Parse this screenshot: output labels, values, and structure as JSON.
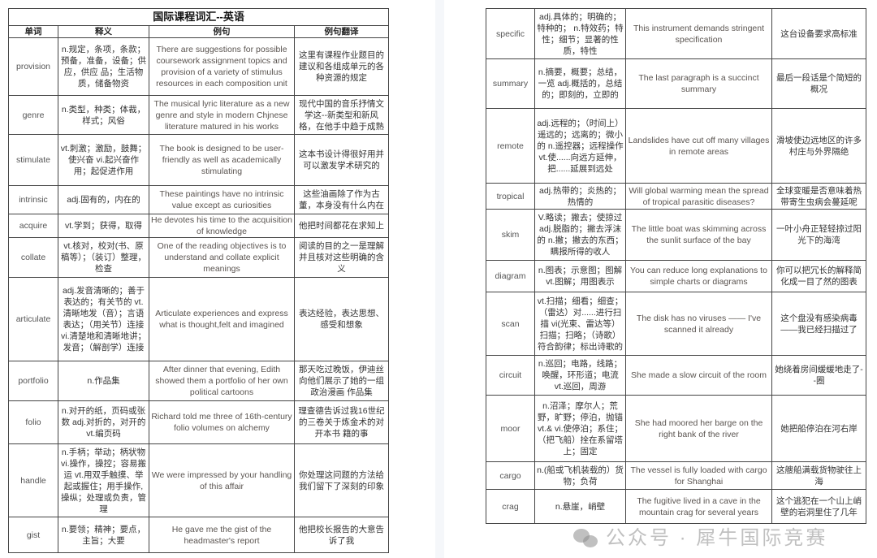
{
  "left_table": {
    "title": "国际课程词汇--英语",
    "headers": [
      "单词",
      "释义",
      "例句",
      "例句翻译"
    ],
    "rows": [
      {
        "word": "provision",
        "definition": "n.规定，条项，条款；预备，准备，设备；供应，供应 品；生活物质，储备物资",
        "example": "There are suggestions for possible coursework assignment topics and provision of a variety of stimulus resources in each composition unit",
        "translation": "这里有课程作业题目的建议和各组成单元的各种资源的规定"
      },
      {
        "word": "genre",
        "definition": "n.类型，种类；体裁，样式；风俗",
        "example": "The musical lyric literature as a new genre and style in modern Chjnese literature matured in his works",
        "translation": "现代中国的音乐抒情文学这--新类型和新风格，在他手中趋于成熟"
      },
      {
        "word": "stimulate",
        "definition": "vt.刺激；激励，鼓舞；使兴奋 vi.起兴奋作用；起促进作用",
        "example": "The book is designed to be user-friendly as well as academically stimulating",
        "translation": "这本书设计得很好用并可以激发学术研究的"
      },
      {
        "word": "intrinsic",
        "definition": "adj.固有的，内在的",
        "example": "These paintings have no intrinsic value except as curiosities",
        "translation": "这些油画除了作为古董，本身没有什么内在"
      },
      {
        "word": "acquire",
        "definition": "vt.学到；获得，取得",
        "example": "He devotes his time to the acquisition of knowledge",
        "translation": "他把时间都花在求知上"
      },
      {
        "word": "collate",
        "definition": "vt.核对，校对(书、原稿等）；（装订）整理，检查",
        "example": "One of the reading objectives is to understand and collate explicit meanings",
        "translation": "阅读的目的之一是理解并且核对这些明确的含义"
      },
      {
        "word": "articulate",
        "definition": "adj.发音清晰的；善于表达的；有关节的 vt.清晰地发（音）；言语表达；（用关节）连接 vi.清楚地和清晰地讲；发音；（解剖学）连接",
        "example": "Articulate experiences and express what is thought,felt and imagined",
        "translation": "表达经验，表达思想、感受和想象"
      },
      {
        "word": "portfolio",
        "definition": "n.作品集",
        "example": "After dinner that evening, Edith showed them a portfolio of her own political cartoons",
        "translation": "那天吃过晚饭，伊迪丝向他们展示了她的一组政治漫画 作品集"
      },
      {
        "word": "folio",
        "definition": "n.对开的纸，页码或张数 adj.对折的，对开的 vt.编页码",
        "example": "Richard told me three of 16th-century folio volumes on alchemy",
        "translation": "理查德告诉过我16世纪的三卷关于炼金术的对开本书 籍的事"
      },
      {
        "word": "handle",
        "definition": "n.手柄；举动；柄状物 vi.操作，操控；容易搬运 vt.用双手触摸、举起或握住；用手操作,操纵；处理或负责，管理",
        "example": "We were impressed by your handling of this affair",
        "translation": "你处理这问题的方法给我们留下了深刻的印象"
      },
      {
        "word": "gist",
        "definition": "n.要领；精神；要点，主旨；大要",
        "example": "He gave me the gist of the headmaster's report",
        "translation": "他把校长报告的大意告诉了我"
      }
    ]
  },
  "right_table": {
    "rows": [
      {
        "word": "specific",
        "definition": "adj.具体的；明确的；特种的； n.特效药；特性；细节；显著的性质，特性",
        "example": "This instrument demands stringent specification",
        "translation": "这台设备要求高标准"
      },
      {
        "word": "summary",
        "definition": "n.摘要，概要；总结，一览 adj.概括的，总结的；即刻的，立即的",
        "example": "The last paragraph is a succinct summary",
        "translation": "最后一段话是个简短的概况"
      },
      {
        "word": "remote",
        "definition": "adj.远程的；（时间上）遥远的；远离的；微小的 n.遥控器；远程操作 vt.使......向远方延伸，把......延展到远处",
        "example": "Landslides have cut off many villages in remote areas",
        "translation": "滑坡使边远地区的许多村庄与外界隔绝"
      },
      {
        "word": "tropical",
        "definition": "adj.热带的；炎热的；热情的",
        "example": "Will global warming mean the spread of tropical parasitic diseases?",
        "translation": "全球变暖是否意味着热带寄生虫病会蔓延呢"
      },
      {
        "word": "skim",
        "definition": "V.略读；撇去；使掠过 adj.脱脂的；撇去浮沫的 n.撇；撇去的东西；瞒报所得的收人",
        "example": "The little boat was skimming across the sunlit surface of the bay",
        "translation": "一叶小舟正轻轻掠过阳光下的海湾"
      },
      {
        "word": "diagram",
        "definition": "n.图表；示意图；图解 vt.图解；用图表示",
        "example": "You can reduce long explanations to simple charts or diagrams",
        "translation": "你可以把冗长的解释简化成一目了然的图表"
      },
      {
        "word": "scan",
        "definition": "vt.扫描；细看；细查；（雷达）对......进行扫描 vi(光束、雷达等）扫描；扫略；（诗歌）符合韵律；标出诗歌的",
        "example": "The disk has no viruses —— I've scanned it already",
        "translation": "这个盘没有感染病毒——我已经扫描过了"
      },
      {
        "word": "circuit",
        "definition": "n.巡回；电路，线路；唤醒，环形道；电流 vt.巡回，周游",
        "example": "She made a slow circuit of the room",
        "translation": "她绕着房间缓缓地走了--圈"
      },
      {
        "word": "moor",
        "definition": "n.沼泽；摩尔人；荒野，旷野；停泊，抛锚 vt.& vi.使停泊；系住；（把飞船）拴在系留塔上；固定",
        "example": "She had moored her barge on the right bank of the river",
        "translation": "她把船停泊在河右岸"
      },
      {
        "word": "cargo",
        "definition": "n.(船或飞机装载的）货物；负荷",
        "example": "The vessel is fully loaded with cargo for Shanghai",
        "translation": "这艘船满载货物驶往上海"
      },
      {
        "word": "crag",
        "definition": "n.悬崖，峭壁",
        "example": "The fugitive lived in a cave in the mountain crag for several years",
        "translation": "这个逃犯在一个山上峭壁的岩洞里住了几年"
      }
    ]
  },
  "watermark": {
    "text": "公众号 · 犀牛国际竞赛",
    "icon": "wechat-icon"
  }
}
